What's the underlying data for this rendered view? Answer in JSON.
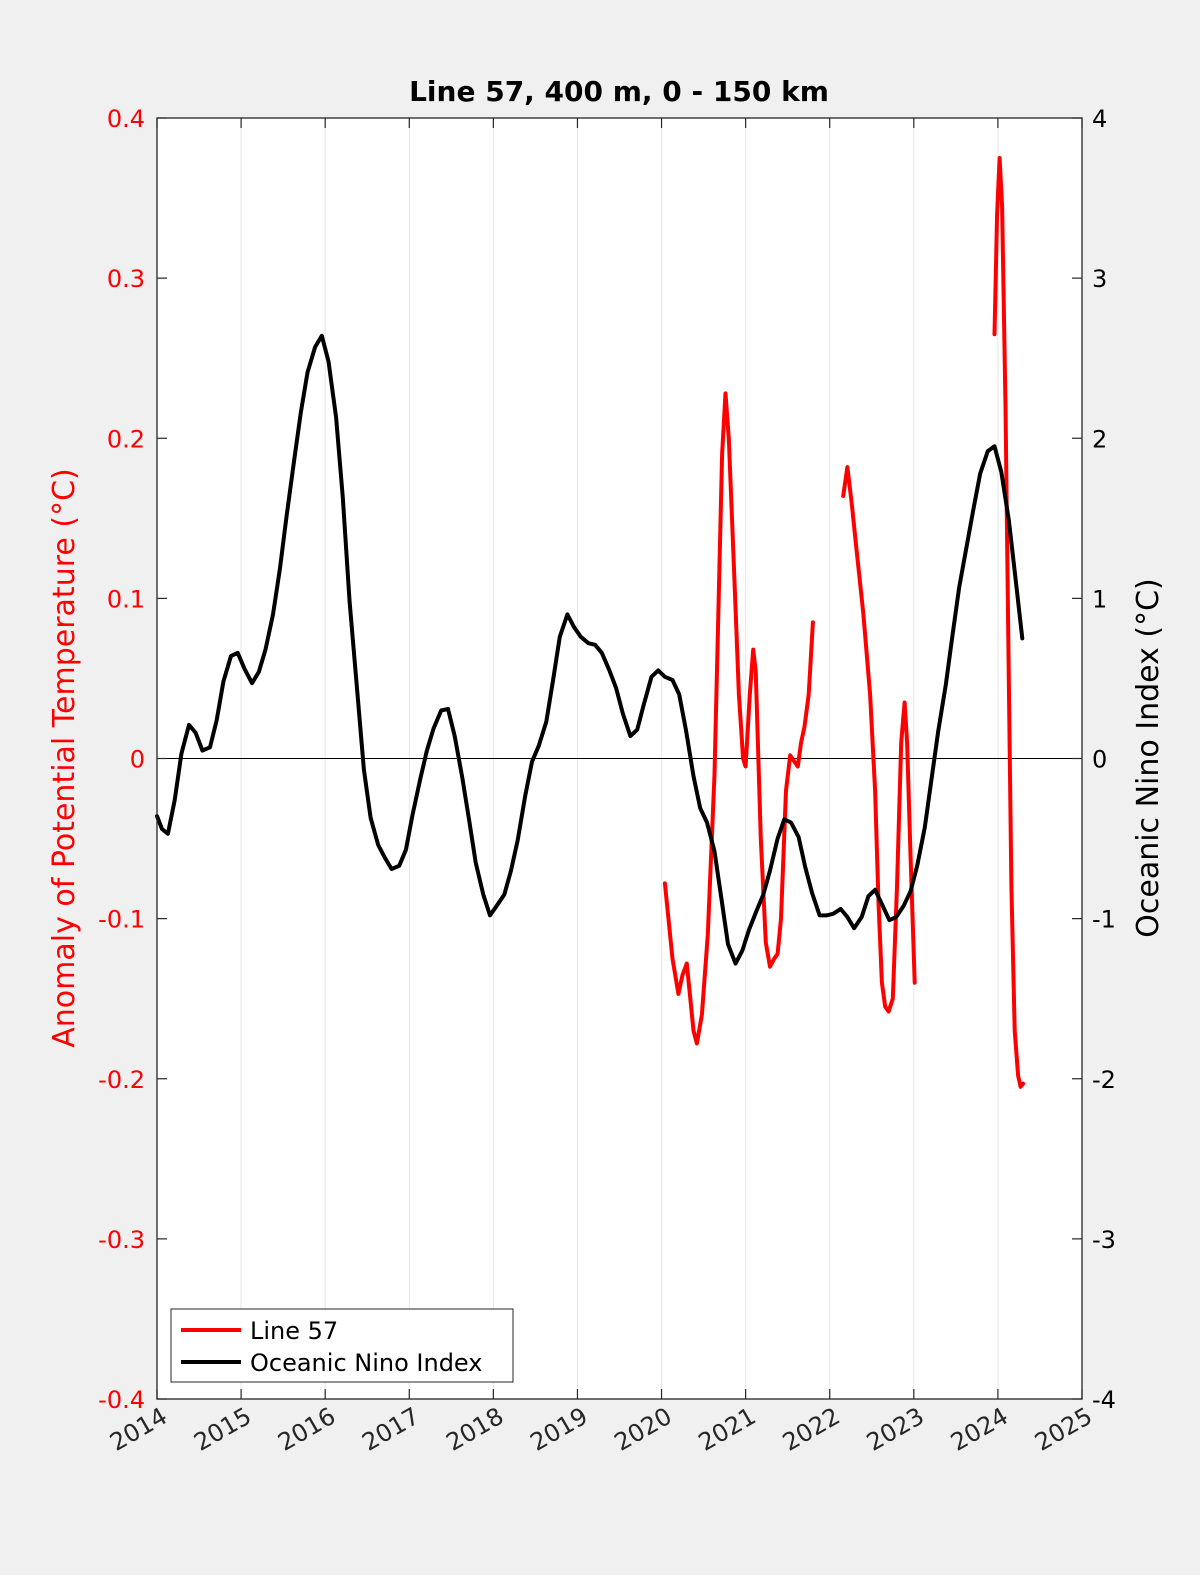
{
  "chart_data": {
    "type": "line",
    "title": "Line 57, 400 m, 0 - 150 km",
    "ylabel_left": "Anomaly of Potential Temperature (°C)",
    "ylabel_right": "Oceanic Nino Index (°C)",
    "xlim": [
      2014,
      2025
    ],
    "ylim_left": [
      -0.4,
      0.4
    ],
    "ylim_right": [
      -4,
      4
    ],
    "x_ticks": [
      "2014",
      "2015",
      "2016",
      "2017",
      "2018",
      "2019",
      "2020",
      "2021",
      "2022",
      "2023",
      "2024",
      "2025"
    ],
    "y_left_ticks": [
      "0.4",
      "0.3",
      "0.2",
      "0.1",
      "0",
      "-0.1",
      "-0.2",
      "-0.3",
      "-0.4"
    ],
    "y_right_ticks": [
      "4",
      "3",
      "2",
      "1",
      "0",
      "-1",
      "-2",
      "-3",
      "-4"
    ],
    "grid": "vertical",
    "zero_line": true,
    "legend_position": "bottom-left",
    "legend": [
      "Line 57",
      "Oceanic Nino Index"
    ],
    "colors": {
      "line57": "#ff0000",
      "oni": "#000000",
      "left_axis": "#ff0000",
      "right_axis": "#000000"
    },
    "series": [
      {
        "name": "Line 57",
        "axis": "left",
        "segments": [
          [
            [
              2020.04,
              -0.078
            ],
            [
              2020.13,
              -0.125
            ],
            [
              2020.2,
              -0.147
            ],
            [
              2020.25,
              -0.135
            ],
            [
              2020.3,
              -0.128
            ],
            [
              2020.38,
              -0.17
            ],
            [
              2020.42,
              -0.178
            ],
            [
              2020.48,
              -0.16
            ],
            [
              2020.55,
              -0.11
            ],
            [
              2020.63,
              -0.01
            ],
            [
              2020.68,
              0.1
            ],
            [
              2020.72,
              0.19
            ],
            [
              2020.76,
              0.228
            ],
            [
              2020.8,
              0.2
            ],
            [
              2020.86,
              0.12
            ],
            [
              2020.92,
              0.04
            ],
            [
              2020.97,
              0.0
            ],
            [
              2021.0,
              -0.005
            ],
            [
              2021.05,
              0.04
            ],
            [
              2021.09,
              0.068
            ],
            [
              2021.12,
              0.055
            ],
            [
              2021.18,
              -0.05
            ],
            [
              2021.24,
              -0.115
            ],
            [
              2021.29,
              -0.13
            ],
            [
              2021.34,
              -0.125
            ],
            [
              2021.38,
              -0.122
            ],
            [
              2021.42,
              -0.1
            ],
            [
              2021.48,
              -0.02
            ],
            [
              2021.53,
              0.002
            ],
            [
              2021.58,
              -0.002
            ],
            [
              2021.62,
              -0.005
            ],
            [
              2021.66,
              0.01
            ],
            [
              2021.7,
              0.02
            ],
            [
              2021.75,
              0.04
            ],
            [
              2021.8,
              0.085
            ]
          ],
          [
            [
              2022.16,
              0.164
            ],
            [
              2022.21,
              0.182
            ],
            [
              2022.26,
              0.16
            ],
            [
              2022.32,
              0.13
            ],
            [
              2022.4,
              0.09
            ],
            [
              2022.48,
              0.04
            ],
            [
              2022.54,
              -0.02
            ],
            [
              2022.58,
              -0.09
            ],
            [
              2022.62,
              -0.14
            ],
            [
              2022.66,
              -0.155
            ],
            [
              2022.7,
              -0.158
            ],
            [
              2022.75,
              -0.15
            ],
            [
              2022.8,
              -0.08
            ],
            [
              2022.85,
              0.01
            ],
            [
              2022.89,
              0.035
            ],
            [
              2022.92,
              0.01
            ],
            [
              2022.96,
              -0.06
            ],
            [
              2023.01,
              -0.14
            ]
          ],
          [
            [
              2023.96,
              0.265
            ],
            [
              2023.99,
              0.34
            ],
            [
              2024.02,
              0.375
            ],
            [
              2024.05,
              0.345
            ],
            [
              2024.09,
              0.22
            ],
            [
              2024.13,
              0.05
            ],
            [
              2024.16,
              -0.08
            ],
            [
              2024.2,
              -0.17
            ],
            [
              2024.24,
              -0.198
            ],
            [
              2024.27,
              -0.205
            ],
            [
              2024.3,
              -0.203
            ]
          ]
        ]
      },
      {
        "name": "Oceanic Nino Index",
        "axis": "right",
        "points": [
          [
            2014.0,
            -0.36
          ],
          [
            2014.06,
            -0.44
          ],
          [
            2014.13,
            -0.47
          ],
          [
            2014.21,
            -0.26
          ],
          [
            2014.29,
            0.03
          ],
          [
            2014.38,
            0.21
          ],
          [
            2014.46,
            0.16
          ],
          [
            2014.54,
            0.05
          ],
          [
            2014.63,
            0.07
          ],
          [
            2014.71,
            0.24
          ],
          [
            2014.79,
            0.48
          ],
          [
            2014.88,
            0.64
          ],
          [
            2014.96,
            0.66
          ],
          [
            2015.04,
            0.56
          ],
          [
            2015.13,
            0.47
          ],
          [
            2015.21,
            0.54
          ],
          [
            2015.29,
            0.68
          ],
          [
            2015.38,
            0.9
          ],
          [
            2015.46,
            1.18
          ],
          [
            2015.54,
            1.51
          ],
          [
            2015.63,
            1.86
          ],
          [
            2015.71,
            2.16
          ],
          [
            2015.79,
            2.41
          ],
          [
            2015.88,
            2.57
          ],
          [
            2015.96,
            2.64
          ],
          [
            2016.04,
            2.48
          ],
          [
            2016.13,
            2.13
          ],
          [
            2016.21,
            1.63
          ],
          [
            2016.29,
            0.98
          ],
          [
            2016.38,
            0.43
          ],
          [
            2016.46,
            -0.07
          ],
          [
            2016.54,
            -0.37
          ],
          [
            2016.63,
            -0.54
          ],
          [
            2016.71,
            -0.62
          ],
          [
            2016.79,
            -0.69
          ],
          [
            2016.88,
            -0.67
          ],
          [
            2016.96,
            -0.57
          ],
          [
            2017.04,
            -0.35
          ],
          [
            2017.13,
            -0.13
          ],
          [
            2017.21,
            0.05
          ],
          [
            2017.29,
            0.19
          ],
          [
            2017.38,
            0.3
          ],
          [
            2017.46,
            0.31
          ],
          [
            2017.54,
            0.14
          ],
          [
            2017.63,
            -0.12
          ],
          [
            2017.71,
            -0.38
          ],
          [
            2017.79,
            -0.65
          ],
          [
            2017.88,
            -0.85
          ],
          [
            2017.96,
            -0.98
          ],
          [
            2018.04,
            -0.92
          ],
          [
            2018.13,
            -0.85
          ],
          [
            2018.21,
            -0.7
          ],
          [
            2018.29,
            -0.51
          ],
          [
            2018.38,
            -0.23
          ],
          [
            2018.46,
            -0.02
          ],
          [
            2018.54,
            0.08
          ],
          [
            2018.63,
            0.23
          ],
          [
            2018.71,
            0.49
          ],
          [
            2018.79,
            0.76
          ],
          [
            2018.88,
            0.9
          ],
          [
            2018.96,
            0.82
          ],
          [
            2019.04,
            0.76
          ],
          [
            2019.13,
            0.72
          ],
          [
            2019.21,
            0.71
          ],
          [
            2019.29,
            0.66
          ],
          [
            2019.38,
            0.55
          ],
          [
            2019.46,
            0.44
          ],
          [
            2019.54,
            0.28
          ],
          [
            2019.63,
            0.14
          ],
          [
            2019.71,
            0.18
          ],
          [
            2019.79,
            0.34
          ],
          [
            2019.88,
            0.51
          ],
          [
            2019.96,
            0.55
          ],
          [
            2020.04,
            0.51
          ],
          [
            2020.13,
            0.49
          ],
          [
            2020.21,
            0.4
          ],
          [
            2020.29,
            0.18
          ],
          [
            2020.38,
            -0.11
          ],
          [
            2020.46,
            -0.31
          ],
          [
            2020.54,
            -0.4
          ],
          [
            2020.63,
            -0.58
          ],
          [
            2020.71,
            -0.87
          ],
          [
            2020.79,
            -1.16
          ],
          [
            2020.88,
            -1.28
          ],
          [
            2020.96,
            -1.2
          ],
          [
            2021.04,
            -1.07
          ],
          [
            2021.13,
            -0.95
          ],
          [
            2021.21,
            -0.85
          ],
          [
            2021.29,
            -0.7
          ],
          [
            2021.38,
            -0.5
          ],
          [
            2021.46,
            -0.38
          ],
          [
            2021.54,
            -0.4
          ],
          [
            2021.63,
            -0.49
          ],
          [
            2021.71,
            -0.68
          ],
          [
            2021.79,
            -0.84
          ],
          [
            2021.88,
            -0.98
          ],
          [
            2021.96,
            -0.98
          ],
          [
            2022.04,
            -0.97
          ],
          [
            2022.13,
            -0.94
          ],
          [
            2022.21,
            -0.99
          ],
          [
            2022.29,
            -1.06
          ],
          [
            2022.38,
            -0.99
          ],
          [
            2022.46,
            -0.86
          ],
          [
            2022.54,
            -0.82
          ],
          [
            2022.63,
            -0.92
          ],
          [
            2022.71,
            -1.01
          ],
          [
            2022.79,
            -0.99
          ],
          [
            2022.88,
            -0.92
          ],
          [
            2022.96,
            -0.83
          ],
          [
            2023.04,
            -0.67
          ],
          [
            2023.13,
            -0.43
          ],
          [
            2023.21,
            -0.13
          ],
          [
            2023.29,
            0.17
          ],
          [
            2023.38,
            0.46
          ],
          [
            2023.46,
            0.77
          ],
          [
            2023.54,
            1.07
          ],
          [
            2023.63,
            1.33
          ],
          [
            2023.71,
            1.56
          ],
          [
            2023.79,
            1.78
          ],
          [
            2023.88,
            1.92
          ],
          [
            2023.96,
            1.95
          ],
          [
            2024.04,
            1.79
          ],
          [
            2024.13,
            1.49
          ],
          [
            2024.21,
            1.12
          ],
          [
            2024.29,
            0.75
          ]
        ]
      }
    ]
  }
}
